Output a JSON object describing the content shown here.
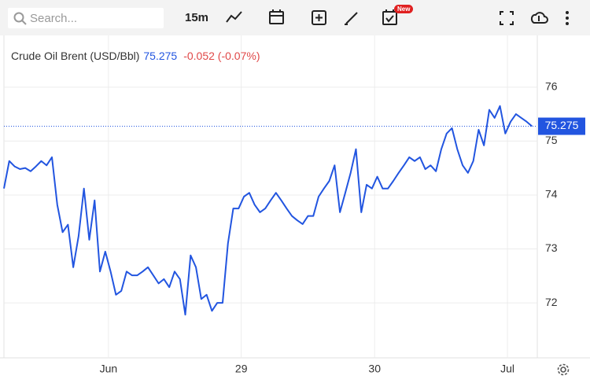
{
  "toolbar": {
    "search_placeholder": "Search...",
    "interval": "15m",
    "new_badge": "New"
  },
  "chart_data": {
    "type": "line",
    "title": "Crude Oil Brent (USD/Bbl)",
    "price": 75.275,
    "change": "-0.052 (-0.07%)",
    "x": [
      0,
      1,
      2,
      3,
      4,
      5,
      6,
      7,
      8,
      9,
      10,
      11,
      12,
      13,
      14,
      15,
      16,
      17,
      18,
      19,
      20,
      21,
      22,
      23,
      24,
      25,
      26,
      27,
      28,
      29,
      30,
      31,
      32,
      33,
      34,
      35,
      36,
      37,
      38,
      39,
      40,
      41,
      42,
      43,
      44,
      45,
      46,
      47,
      48,
      49,
      50,
      51,
      52,
      53,
      54,
      55,
      56,
      57,
      58,
      59,
      60,
      61,
      62,
      63,
      64,
      65,
      66,
      67,
      68,
      69,
      70,
      71,
      72,
      73,
      74,
      75,
      76,
      77,
      78,
      79,
      80,
      81,
      82,
      83,
      84,
      85,
      86,
      87,
      88,
      89,
      90,
      91,
      92,
      93,
      94,
      95,
      96,
      97,
      98,
      99
    ],
    "series": [
      {
        "name": "Crude Oil Brent",
        "color": "#2255e0",
        "values": [
          74.12,
          74.63,
          74.53,
          74.48,
          74.5,
          74.44,
          74.53,
          74.63,
          74.55,
          74.7,
          73.82,
          73.31,
          73.45,
          72.66,
          73.24,
          74.12,
          73.17,
          73.9,
          72.58,
          72.95,
          72.58,
          72.15,
          72.22,
          72.58,
          72.51,
          72.51,
          72.58,
          72.66,
          72.51,
          72.36,
          72.44,
          72.29,
          72.58,
          72.44,
          71.78,
          72.88,
          72.66,
          72.07,
          72.15,
          71.85,
          72.0,
          72.0,
          73.1,
          73.75,
          73.75,
          73.97,
          74.04,
          73.82,
          73.68,
          73.75,
          73.9,
          74.04,
          73.9,
          73.75,
          73.61,
          73.53,
          73.46,
          73.61,
          73.61,
          73.97,
          74.12,
          74.26,
          74.55,
          73.68,
          74.04,
          74.41,
          74.85,
          73.68,
          74.19,
          74.12,
          74.34,
          74.12,
          74.12,
          74.26,
          74.41,
          74.55,
          74.7,
          74.63,
          74.7,
          74.48,
          74.55,
          74.44,
          74.85,
          75.14,
          75.24,
          74.85,
          74.55,
          74.41,
          74.63,
          75.21,
          74.92,
          75.58,
          75.43,
          75.65,
          75.14,
          75.36,
          75.5,
          75.43,
          75.36,
          75.275
        ]
      }
    ],
    "xlim": [
      0,
      100
    ],
    "xticks": [
      {
        "value": 19.6,
        "label": "Jun"
      },
      {
        "value": 44.5,
        "label": "29"
      },
      {
        "value": 69.5,
        "label": "30"
      },
      {
        "value": 94.4,
        "label": "Jul"
      }
    ],
    "ylim": [
      70.98,
      76.96
    ],
    "yticks": [
      72,
      73,
      74,
      75,
      76
    ],
    "grid": true
  }
}
